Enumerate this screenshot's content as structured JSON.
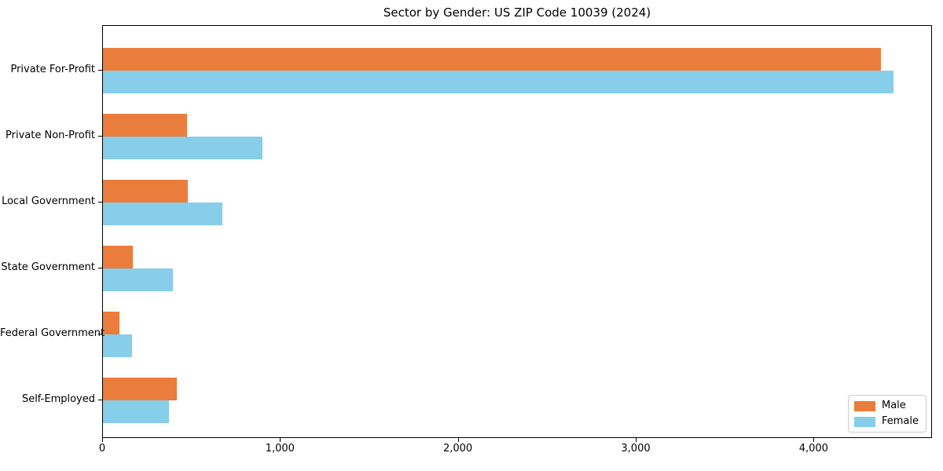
{
  "chart_data": {
    "type": "bar",
    "orientation": "horizontal",
    "title": "Sector by Gender: US ZIP Code 10039 (2024)",
    "categories": [
      "Private For-Profit",
      "Private Non-Profit",
      "Local Government",
      "State Government",
      "Federal Government",
      "Self-Employed"
    ],
    "series": [
      {
        "name": "Male",
        "color": "#EB7D3C",
        "values": [
          4373,
          474,
          478,
          169,
          93,
          413
        ]
      },
      {
        "name": "Female",
        "color": "#87CEEB",
        "values": [
          4444,
          896,
          672,
          394,
          162,
          371
        ]
      }
    ],
    "xlim": [
      0,
      4666
    ],
    "x_ticks": [
      0,
      1000,
      2000,
      3000,
      4000
    ],
    "x_tick_labels": [
      "0",
      "1,000",
      "2,000",
      "3,000",
      "4,000"
    ],
    "xlabel": "",
    "ylabel": "",
    "grid": false,
    "legend_position": "lower right",
    "background_color": "#ffffff",
    "spine_color": "#000000"
  }
}
